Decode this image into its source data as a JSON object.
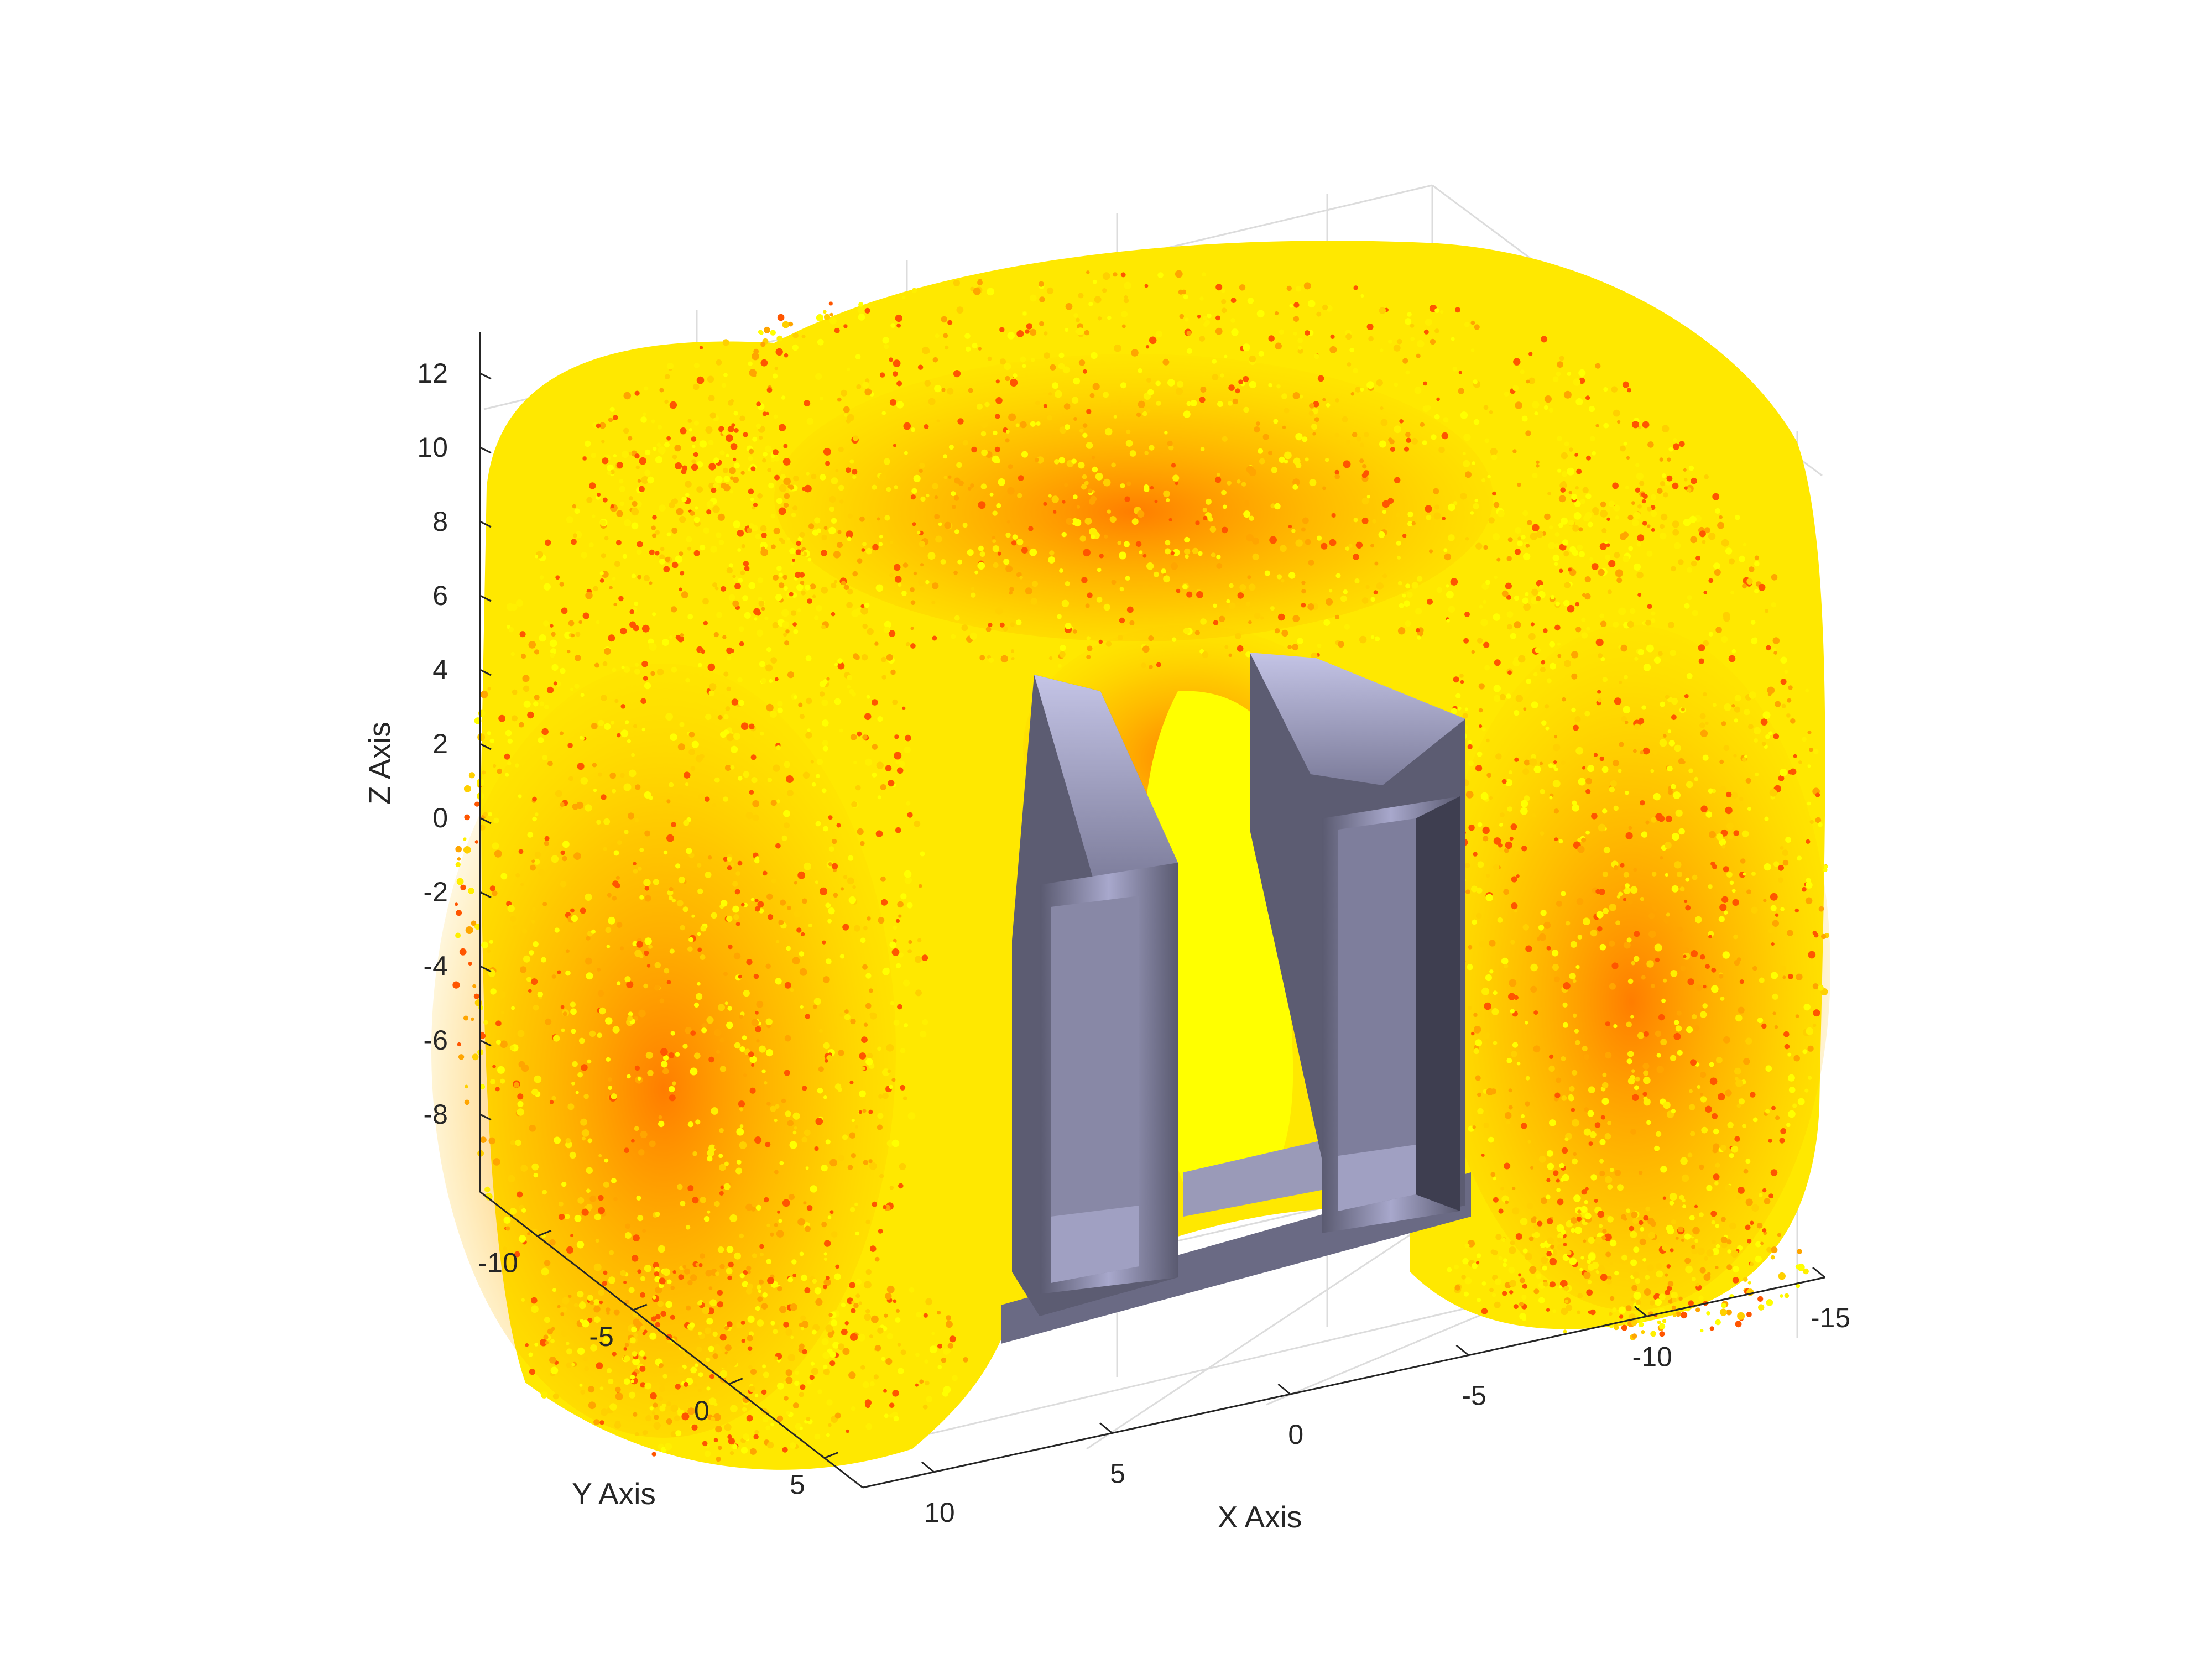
{
  "chart_data": {
    "type": "scatter",
    "projection": "3d",
    "title": "",
    "xlabel": "X Axis",
    "ylabel": "Y Axis",
    "zlabel": "Z Axis",
    "xlim": [
      -15,
      12
    ],
    "ylim": [
      -13,
      7
    ],
    "zlim": [
      -10,
      13
    ],
    "x_ticks": [
      "10",
      "5",
      "0",
      "-5",
      "-10",
      "-15"
    ],
    "y_ticks": [
      "-10",
      "-5",
      "0",
      "5"
    ],
    "z_ticks": [
      "12",
      "10",
      "8",
      "6",
      "4",
      "2",
      "0",
      "-2",
      "-4",
      "-6",
      "-8"
    ],
    "grid": true,
    "colors": {
      "point_high": "#ffff00",
      "point_mid": "#ffa500",
      "point_low": "#ff5500",
      "solid_light": "#b4b4d8",
      "solid_dark": "#4a4a5e"
    },
    "series": [
      {
        "values": [
          [
            -5,
            -2,
            12
          ],
          [
            5,
            -8,
            11
          ],
          [
            -12,
            3,
            9
          ],
          [
            8,
            5,
            2
          ],
          [
            -14,
            -5,
            0
          ],
          [
            9,
            0,
            -7
          ],
          [
            -3,
            -11,
            -9
          ],
          [
            0,
            0,
            -2
          ]
        ]
      }
    ],
    "solid": "grey U-shaped magnet yoke"
  }
}
